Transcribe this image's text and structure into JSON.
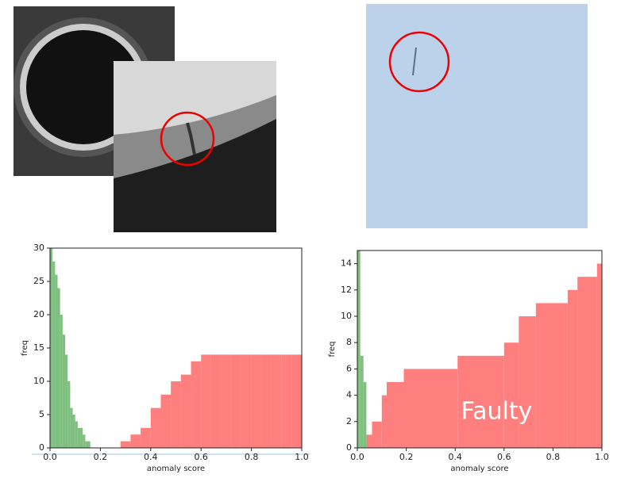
{
  "chart_data": [
    {
      "type": "histogram",
      "xlabel": "anomaly score",
      "ylabel": "freq",
      "xlim": [
        0,
        1
      ],
      "ylim": [
        0,
        30
      ],
      "xticks": [
        {
          "value": 0,
          "label": "0.0"
        },
        {
          "value": 0.2,
          "label": "0.2"
        },
        {
          "value": 0.4,
          "label": "0.4"
        },
        {
          "value": 0.6,
          "label": "0.6"
        },
        {
          "value": 0.8,
          "label": "0.8"
        },
        {
          "value": 1,
          "label": "1.0"
        }
      ],
      "yticks": [
        0,
        5,
        10,
        15,
        20,
        25,
        30
      ],
      "series": [
        {
          "color": "#7fbf7f",
          "bins": [
            0,
            0.01,
            0.02,
            0.03,
            0.04,
            0.05,
            0.06,
            0.07,
            0.08,
            0.09,
            0.1,
            0.11,
            0.12,
            0.13,
            0.14,
            0.15,
            0.16
          ],
          "values": [
            30,
            28,
            26,
            24,
            20,
            17,
            14,
            10,
            6,
            5,
            4,
            3,
            3,
            2,
            1,
            1
          ]
        },
        {
          "color": "#ff7f7f",
          "bins": [
            0.28,
            0.32,
            0.36,
            0.4,
            0.44,
            0.48,
            0.52,
            0.56,
            0.6,
            0.64,
            0.68,
            0.72,
            0.76,
            0.8,
            0.84,
            0.88,
            0.92,
            0.96,
            1.0
          ],
          "values": [
            1,
            2,
            3,
            6,
            8,
            10,
            11,
            13,
            14,
            14,
            14,
            14,
            14,
            14,
            14,
            14,
            14,
            14
          ]
        }
      ]
    },
    {
      "type": "histogram",
      "xlabel": "anomaly score",
      "ylabel": "freq",
      "xlim": [
        0,
        1
      ],
      "ylim": [
        0,
        15
      ],
      "xticks": [
        {
          "value": 0,
          "label": "0.0"
        },
        {
          "value": 0.2,
          "label": "0.2"
        },
        {
          "value": 0.4,
          "label": "0.4"
        },
        {
          "value": 0.6,
          "label": "0.6"
        },
        {
          "value": 0.8,
          "label": "0.8"
        },
        {
          "value": 1,
          "label": "1.0"
        }
      ],
      "yticks": [
        0,
        2,
        4,
        6,
        8,
        10,
        12,
        14
      ],
      "annotation": "Faulty",
      "series": [
        {
          "color": "#7fbf7f",
          "bins": [
            0,
            0.012,
            0.025,
            0.037,
            0.05
          ],
          "values": [
            15,
            7,
            5,
            1
          ]
        },
        {
          "color": "#ff7f7f",
          "bins": [
            0.04,
            0.06,
            0.1,
            0.12,
            0.19,
            0.41,
            0.6,
            0.66,
            0.73,
            0.86,
            0.9,
            0.98,
            1.0
          ],
          "values": [
            1,
            2,
            4,
            5,
            6,
            7,
            8,
            10,
            11,
            12,
            13,
            14
          ]
        }
      ]
    }
  ]
}
